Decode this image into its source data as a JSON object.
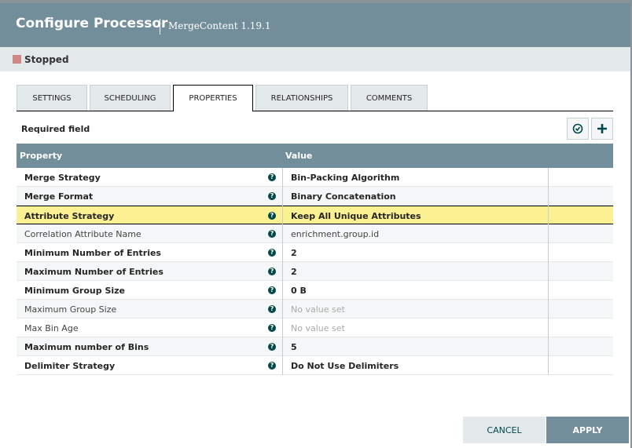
{
  "header": {
    "title": "Configure Processor",
    "subtitle": "MergeContent 1.19.1"
  },
  "status": "Stopped",
  "tabs": [
    "SETTINGS",
    "SCHEDULING",
    "PROPERTIES",
    "RELATIONSHIPS",
    "COMMENTS"
  ],
  "active_tab": 2,
  "required_label": "Required field",
  "table": {
    "columns": [
      "Property",
      "Value"
    ],
    "rows": [
      {
        "property": "Merge Strategy",
        "value": "Bin-Packing Algorithm",
        "required": true
      },
      {
        "property": "Merge Format",
        "value": "Binary Concatenation",
        "required": true
      },
      {
        "property": "Attribute Strategy",
        "value": "Keep All Unique Attributes",
        "required": true,
        "selected": true
      },
      {
        "property": "Correlation Attribute Name",
        "value": "enrichment.group.id",
        "required": false
      },
      {
        "property": "Minimum Number of Entries",
        "value": "2",
        "required": true
      },
      {
        "property": "Maximum Number of Entries",
        "value": "2",
        "required": true
      },
      {
        "property": "Minimum Group Size",
        "value": "0 B",
        "required": true
      },
      {
        "property": "Maximum Group Size",
        "value": "No value set",
        "required": false,
        "unset": true
      },
      {
        "property": "Max Bin Age",
        "value": "No value set",
        "required": false,
        "unset": true
      },
      {
        "property": "Maximum number of Bins",
        "value": "5",
        "required": true
      },
      {
        "property": "Delimiter Strategy",
        "value": "Do Not Use Delimiters",
        "required": true
      }
    ]
  },
  "buttons": {
    "cancel": "CANCEL",
    "apply": "APPLY"
  }
}
